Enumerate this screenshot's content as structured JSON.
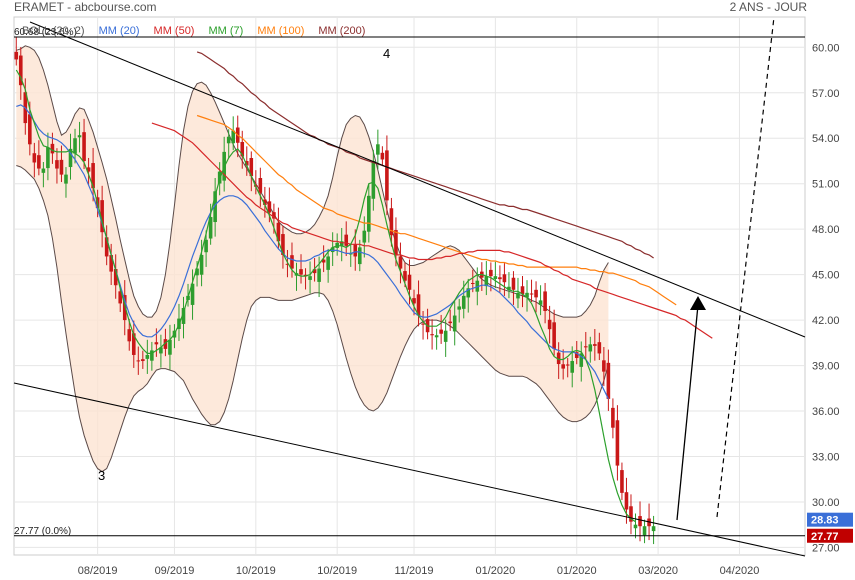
{
  "header": {
    "title": "ERAMET - abcbourse.com",
    "period": "2 ANS - JOUR"
  },
  "legend": [
    {
      "label": "BOLL (20, 2)",
      "color": "#555555"
    },
    {
      "label": "MM (20)",
      "color": "#3a6fd8"
    },
    {
      "label": "MM (50)",
      "color": "#d62728"
    },
    {
      "label": "MM (7)",
      "color": "#2ca02c"
    },
    {
      "label": "MM (100)",
      "color": "#ff7f0e"
    },
    {
      "label": "MM (200)",
      "color": "#8b2e2e"
    }
  ],
  "chart_data": {
    "type": "candlestick",
    "ylim": [
      26.5,
      62
    ],
    "yticks": [
      27,
      30,
      33,
      36,
      39,
      42,
      45,
      48,
      51,
      54,
      57,
      60
    ],
    "xticks": [
      "08/2019",
      "09/2019",
      "10/2019",
      "10/2019",
      "11/2019",
      "01/2020",
      "01/2020",
      "03/2020",
      "04/2020"
    ],
    "xtick_idx": [
      18,
      35,
      53,
      71,
      88,
      106,
      124,
      142,
      160
    ],
    "n_bars": 142,
    "close": [
      59.2,
      57.5,
      55,
      53.6,
      52.4,
      52,
      52,
      53.4,
      53,
      52,
      51.6,
      51.6,
      53.3,
      54,
      54.2,
      52.5,
      51.8,
      50.7,
      49.4,
      47.8,
      46.2,
      45.2,
      44.3,
      43.1,
      42,
      40.6,
      39.7,
      39.3,
      39.3,
      39.7,
      40,
      40.4,
      40.2,
      40.1,
      40.7,
      41.3,
      42.1,
      42.8,
      43.6,
      44.4,
      45.4,
      46.3,
      47.3,
      48.8,
      50.5,
      51.8,
      53.1,
      54.1,
      54.5,
      53.7,
      52.8,
      52.2,
      51.5,
      50.8,
      50.4,
      49.6,
      49.1,
      48.7,
      47.2,
      46.3,
      45.7,
      45.4,
      45.1,
      45,
      44.9,
      44.9,
      45.1,
      45.4,
      45.8,
      46.2,
      46.8,
      47.1,
      47.2,
      46.9,
      46.4,
      46.2,
      46.8,
      47.9,
      50.2,
      52.5,
      53.6,
      52.6,
      49.9,
      47.6,
      46.3,
      45.4,
      44.6,
      44,
      43.1,
      42.3,
      41.7,
      41.2,
      41,
      41,
      41.1,
      41.3,
      41.8,
      42.3,
      42.9,
      43.6,
      44.1,
      44.4,
      44.6,
      44.8,
      44.9,
      44.9,
      44.9,
      44.7,
      44.5,
      44.2,
      44,
      43.8,
      43.7,
      43.8,
      43.7,
      43.5,
      43.3,
      42.6,
      41.4,
      40.1,
      39.1,
      38.8,
      39,
      39.3,
      39.5,
      39.8,
      40.2,
      40.4,
      40.3,
      39.8,
      38.6,
      36.8,
      34.9,
      32.4,
      30.6,
      29.5,
      28.7,
      28.5,
      28.4,
      28.4,
      28.4,
      28.4
    ],
    "sma7": [
      58.5,
      58,
      57.2,
      55.9,
      55,
      54.1,
      53.5,
      53.4,
      53.2,
      53.1,
      53.1,
      53.1,
      53.2,
      53,
      52.8,
      52.4,
      51.6,
      50.8,
      49.7,
      48.5,
      47.4,
      46.3,
      45.3,
      44.1,
      43,
      41.9,
      41,
      40.5,
      40.1,
      39.8,
      39.8,
      40,
      40.2,
      40.5,
      40.7,
      41.1,
      41.7,
      42.5,
      43.5,
      44.5,
      45.5,
      46.5,
      47.7,
      49,
      50.2,
      51.3,
      52.1,
      52.7,
      53.1,
      53.3,
      52.9,
      52.2,
      51.5,
      50.8,
      50.2,
      49.6,
      48.9,
      48.1,
      47.2,
      46.4,
      45.8,
      45.3,
      45,
      44.9,
      44.9,
      45,
      45.4,
      45.7,
      46.1,
      46.5,
      46.8,
      46.9,
      46.9,
      46.8,
      47,
      47.6,
      48.7,
      50,
      51,
      51.1,
      50.7,
      49.6,
      48.3,
      47.1,
      46,
      45.2,
      44.4,
      43.6,
      42.9,
      42.3,
      41.9,
      41.6,
      41.6,
      41.6,
      41.8,
      42.2,
      42.8,
      43.3,
      43.8,
      44.2,
      44.6,
      44.8,
      45,
      45,
      44.9,
      44.8,
      44.6,
      44.4,
      44.2,
      44,
      43.9,
      43.9,
      43.7,
      43.5,
      43.1,
      42.4,
      41.6,
      40.9,
      40.1,
      39.6,
      39.4,
      39.4,
      39.6,
      39.9,
      40,
      39.9,
      39.4,
      38.6,
      37.4,
      35.9,
      34.3,
      32.8,
      31.6,
      30.6,
      29.8,
      29.2,
      28.9,
      28.7
    ],
    "sma20": [
      56.1,
      56.2,
      56,
      55.6,
      55.1,
      54.6,
      54.3,
      54.1,
      54,
      53.9,
      53.7,
      53.4,
      53,
      52.6,
      52.1,
      51.6,
      50.9,
      50.2,
      49.3,
      48.4,
      47.4,
      46.3,
      45.3,
      44.3,
      43.3,
      42.4,
      41.8,
      41.3,
      41,
      40.9,
      40.9,
      41.1,
      41.4,
      41.8,
      42.3,
      42.9,
      43.6,
      44.4,
      45.3,
      46.2,
      47,
      47.8,
      48.5,
      49.1,
      49.6,
      49.9,
      50.1,
      50.2,
      50.2,
      50.1,
      49.9,
      49.6,
      49.2,
      48.8,
      48.4,
      47.9,
      47.5,
      47.1,
      46.7,
      46.4,
      46.1,
      46,
      45.9,
      45.9,
      45.9,
      46,
      46.2,
      46.3,
      46.5,
      46.6,
      46.6,
      46.6,
      46.5,
      46.4,
      46.4,
      46.5,
      46.5,
      46.4,
      46.3,
      46.1,
      45.8,
      45.4,
      45,
      44.6,
      44.2,
      43.7,
      43.3,
      42.9,
      42.5,
      42.3,
      42.2,
      42.2,
      42.3,
      42.4,
      42.6,
      42.8,
      43,
      43.3,
      43.6,
      43.8,
      44,
      44.1,
      44.2,
      44.3,
      44.3,
      44.2,
      44,
      43.8,
      43.5,
      43.2,
      42.9,
      42.5,
      42.2,
      41.9,
      41.5,
      41.2,
      40.9,
      40.6,
      40.3,
      40.1,
      40,
      39.9,
      39.9,
      39.9,
      39.8,
      39.6,
      39.4,
      39,
      38.6,
      38,
      37.4,
      36.8
    ],
    "sma50": [
      55,
      54.9,
      54.8,
      54.7,
      54.6,
      54.5,
      54.3,
      54.1,
      53.9,
      53.7,
      53.4,
      53.1,
      52.8,
      52.5,
      52.2,
      51.9,
      51.6,
      51.3,
      51,
      50.7,
      50.4,
      50.1,
      49.9,
      49.6,
      49.4,
      49.2,
      49,
      48.8,
      48.6,
      48.4,
      48.3,
      48.1,
      48,
      47.9,
      47.8,
      47.7,
      47.6,
      47.5,
      47.4,
      47.3,
      47.2,
      47.2,
      47.1,
      47.1,
      47,
      47,
      47,
      46.9,
      46.9,
      46.8,
      46.7,
      46.6,
      46.5,
      46.4,
      46.3,
      46.3,
      46.2,
      46.1,
      46.1,
      46,
      46,
      46,
      46,
      46.1,
      46.1,
      46.2,
      46.2,
      46.3,
      46.4,
      46.4,
      46.5,
      46.5,
      46.6,
      46.6,
      46.6,
      46.6,
      46.6,
      46.6,
      46.5,
      46.5,
      46.4,
      46.3,
      46.2,
      46.1,
      46,
      45.9,
      45.8,
      45.6,
      45.5,
      45.3,
      45.2,
      45,
      44.9,
      44.7,
      44.6,
      44.5,
      44.4,
      44.3,
      44.1,
      44,
      43.9,
      43.8,
      43.7,
      43.6,
      43.5,
      43.4,
      43.3,
      43.2,
      43.1,
      43,
      42.9,
      42.8,
      42.7,
      42.6,
      42.5,
      42.4,
      42.3,
      42.1,
      42,
      41.8,
      41.6,
      41.4,
      41.2,
      41,
      40.8
    ],
    "sma100": [
      55.5,
      55.4,
      55.3,
      55.2,
      55.1,
      55,
      54.9,
      54.7,
      54.5,
      54.2,
      54,
      53.7,
      53.4,
      53.1,
      52.8,
      52.5,
      52.2,
      51.9,
      51.6,
      51.4,
      51.1,
      50.9,
      50.6,
      50.4,
      50.2,
      50,
      49.8,
      49.6,
      49.4,
      49.3,
      49.2,
      49,
      48.9,
      48.8,
      48.7,
      48.6,
      48.5,
      48.4,
      48.4,
      48.3,
      48.2,
      48.1,
      48,
      47.9,
      47.8,
      47.7,
      47.7,
      47.6,
      47.5,
      47.4,
      47.3,
      47.2,
      47.1,
      47,
      46.9,
      46.8,
      46.7,
      46.6,
      46.5,
      46.4,
      46.3,
      46.2,
      46.1,
      46,
      46,
      45.9,
      45.9,
      45.8,
      45.8,
      45.7,
      45.7,
      45.6,
      45.6,
      45.5,
      45.5,
      45.5,
      45.5,
      45.5,
      45.5,
      45.5,
      45.5,
      45.5,
      45.5,
      45.5,
      45.5,
      45.4,
      45.4,
      45.3,
      45.3,
      45.2,
      45.2,
      45.1,
      45.1,
      45,
      44.9,
      44.8,
      44.7,
      44.6,
      44.4,
      44.3,
      44.2,
      44,
      43.8,
      43.6,
      43.4,
      43.2,
      43
    ],
    "sma200": [
      59.7,
      59.6,
      59.4,
      59.2,
      59,
      58.8,
      58.6,
      58.3,
      58.1,
      57.8,
      57.6,
      57.3,
      57,
      56.8,
      56.5,
      56.3,
      56,
      55.8,
      55.6,
      55.4,
      55.2,
      55,
      54.8,
      54.6,
      54.4,
      54.2,
      54.1,
      53.9,
      53.8,
      53.6,
      53.5,
      53.4,
      53.3,
      53.1,
      53,
      52.9,
      52.7,
      52.6,
      52.5,
      52.4,
      52.3,
      52.2,
      52.1,
      52,
      51.9,
      51.8,
      51.7,
      51.6,
      51.5,
      51.4,
      51.3,
      51.2,
      51.1,
      51,
      50.9,
      50.8,
      50.7,
      50.6,
      50.5,
      50.4,
      50.3,
      50.2,
      50.1,
      50,
      49.9,
      49.8,
      49.7,
      49.6,
      49.6,
      49.5,
      49.5,
      49.4,
      49.3,
      49.3,
      49.2,
      49.1,
      49,
      48.9,
      48.8,
      48.7,
      48.6,
      48.5,
      48.4,
      48.3,
      48.2,
      48.1,
      48,
      47.9,
      47.8,
      47.7,
      47.6,
      47.5,
      47.4,
      47.3,
      47.2,
      47,
      46.9,
      46.7,
      46.6,
      46.4,
      46.3,
      46.1
    ],
    "boll_upper": [
      59.8,
      59.9,
      60.1,
      60,
      59.8,
      59.3,
      58.5,
      57.5,
      56.3,
      55.1,
      54.2,
      54.4,
      54.9,
      55.6,
      56,
      55.9,
      55.2,
      54.4,
      53.4,
      52.4,
      51.3,
      50,
      48.7,
      47.3,
      46,
      44.7,
      43.6,
      42.9,
      42.4,
      42.2,
      42.2,
      42.6,
      43.5,
      45,
      47.1,
      49.6,
      52.2,
      54.5,
      56.1,
      57.1,
      57.6,
      57.7,
      57.5,
      57,
      56.4,
      55.7,
      55,
      54.3,
      53.6,
      53,
      52.5,
      52,
      51.5,
      51,
      50.5,
      50,
      49.5,
      49,
      48.5,
      48.2,
      48,
      47.8,
      47.7,
      47.7,
      47.8,
      48,
      48.3,
      48.8,
      49.4,
      50.2,
      51.4,
      52.8,
      54,
      54.9,
      55.3,
      55.5,
      55.4,
      54.9,
      54.1,
      53.1,
      51.9,
      50.6,
      49.3,
      48.1,
      47.1,
      46.3,
      45.8,
      45.6,
      45.6,
      45.7,
      45.8,
      46,
      46.2,
      46.4,
      46.6,
      46.8,
      46.9,
      46.8,
      46.6,
      46.2,
      45.8,
      45.4,
      45,
      44.7,
      44.5,
      44.3,
      44.2,
      44.1,
      44,
      43.9,
      43.8,
      43.7,
      43.6,
      43.5,
      43.3,
      43.2,
      43,
      42.8,
      42.6,
      42.4,
      42.3,
      42.2,
      42.2,
      42.2,
      42.2,
      42.3,
      42.6,
      43,
      43.6,
      44.5,
      45.3,
      45.8
    ],
    "boll_lower": [
      52.2,
      52.1,
      51.9,
      51.6,
      51.3,
      50.7,
      49.9,
      48.9,
      47.4,
      45.5,
      43.2,
      41.1,
      39.1,
      37.2,
      35.6,
      34.4,
      33.5,
      32.7,
      32.2,
      32,
      32.2,
      32.9,
      33.8,
      34.7,
      35.6,
      36.4,
      37,
      37.3,
      37.5,
      37.8,
      38.3,
      38.7,
      38.8,
      38.8,
      38.7,
      38.6,
      38.3,
      38,
      37.4,
      36.8,
      36.3,
      35.8,
      35.4,
      35.1,
      35.1,
      35.3,
      35.9,
      36.8,
      38,
      39.4,
      40.8,
      42,
      42.9,
      43.3,
      43.5,
      43.5,
      43.5,
      43.4,
      43.3,
      43.3,
      43.3,
      43.3,
      43.4,
      43.5,
      43.6,
      43.7,
      43.8,
      43.8,
      43.7,
      43.3,
      42.6,
      41.7,
      40.6,
      39.5,
      38.5,
      37.6,
      36.9,
      36.4,
      36.1,
      36,
      36.2,
      36.6,
      37.2,
      38,
      38.8,
      39.6,
      40.3,
      40.9,
      41.4,
      41.7,
      41.9,
      42,
      42,
      42,
      41.9,
      41.8,
      41.6,
      41.4,
      41.1,
      40.8,
      40.5,
      40.2,
      39.9,
      39.6,
      39.3,
      39,
      38.7,
      38.5,
      38.4,
      38.3,
      38.3,
      38.3,
      38.3,
      38.2,
      38,
      37.8,
      37.5,
      37.1,
      36.7,
      36.3,
      35.9,
      35.6,
      35.4,
      35.3,
      35.3,
      35.4,
      35.6,
      35.9,
      36.4,
      37.1,
      38,
      39.1
    ],
    "boll_upper_start": 0,
    "boll_lower_start": 0,
    "sma20_start": 0,
    "sma50_start": 30,
    "sma100_start": 40,
    "sma200_start": 40,
    "hlines": [
      {
        "value": 60.68,
        "label": "60.68 (23.6%)"
      },
      {
        "value": 27.77,
        "label": "27.77 (0.0%)"
      }
    ],
    "price_tags": [
      {
        "value": 28.83,
        "label": "28.83",
        "color": "#3a6fd8"
      },
      {
        "value": 27.77,
        "label": "27.77",
        "color": "#c00000"
      }
    ],
    "annotations": [
      {
        "text": "4"
      },
      {
        "text": "3"
      }
    ]
  }
}
